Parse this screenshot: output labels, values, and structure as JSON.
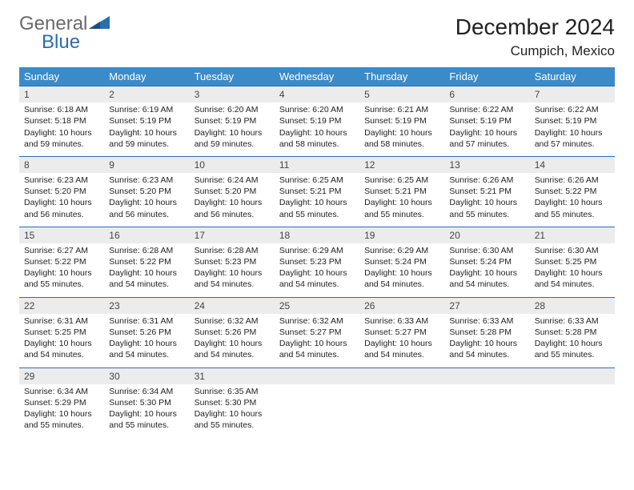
{
  "logo": {
    "word1": "General",
    "word2": "Blue"
  },
  "title": "December 2024",
  "location": "Cumpich, Mexico",
  "colors": {
    "header_bg": "#3b8bc8",
    "header_text": "#ffffff",
    "daynum_bg": "#ececec",
    "row_border": "#2a6db0",
    "logo_gray": "#6a6a6a",
    "logo_blue": "#2a6db0"
  },
  "weekdays": [
    "Sunday",
    "Monday",
    "Tuesday",
    "Wednesday",
    "Thursday",
    "Friday",
    "Saturday"
  ],
  "weeks": [
    [
      {
        "n": "1",
        "sr": "Sunrise: 6:18 AM",
        "ss": "Sunset: 5:18 PM",
        "dl": "Daylight: 10 hours and 59 minutes."
      },
      {
        "n": "2",
        "sr": "Sunrise: 6:19 AM",
        "ss": "Sunset: 5:19 PM",
        "dl": "Daylight: 10 hours and 59 minutes."
      },
      {
        "n": "3",
        "sr": "Sunrise: 6:20 AM",
        "ss": "Sunset: 5:19 PM",
        "dl": "Daylight: 10 hours and 59 minutes."
      },
      {
        "n": "4",
        "sr": "Sunrise: 6:20 AM",
        "ss": "Sunset: 5:19 PM",
        "dl": "Daylight: 10 hours and 58 minutes."
      },
      {
        "n": "5",
        "sr": "Sunrise: 6:21 AM",
        "ss": "Sunset: 5:19 PM",
        "dl": "Daylight: 10 hours and 58 minutes."
      },
      {
        "n": "6",
        "sr": "Sunrise: 6:22 AM",
        "ss": "Sunset: 5:19 PM",
        "dl": "Daylight: 10 hours and 57 minutes."
      },
      {
        "n": "7",
        "sr": "Sunrise: 6:22 AM",
        "ss": "Sunset: 5:19 PM",
        "dl": "Daylight: 10 hours and 57 minutes."
      }
    ],
    [
      {
        "n": "8",
        "sr": "Sunrise: 6:23 AM",
        "ss": "Sunset: 5:20 PM",
        "dl": "Daylight: 10 hours and 56 minutes."
      },
      {
        "n": "9",
        "sr": "Sunrise: 6:23 AM",
        "ss": "Sunset: 5:20 PM",
        "dl": "Daylight: 10 hours and 56 minutes."
      },
      {
        "n": "10",
        "sr": "Sunrise: 6:24 AM",
        "ss": "Sunset: 5:20 PM",
        "dl": "Daylight: 10 hours and 56 minutes."
      },
      {
        "n": "11",
        "sr": "Sunrise: 6:25 AM",
        "ss": "Sunset: 5:21 PM",
        "dl": "Daylight: 10 hours and 55 minutes."
      },
      {
        "n": "12",
        "sr": "Sunrise: 6:25 AM",
        "ss": "Sunset: 5:21 PM",
        "dl": "Daylight: 10 hours and 55 minutes."
      },
      {
        "n": "13",
        "sr": "Sunrise: 6:26 AM",
        "ss": "Sunset: 5:21 PM",
        "dl": "Daylight: 10 hours and 55 minutes."
      },
      {
        "n": "14",
        "sr": "Sunrise: 6:26 AM",
        "ss": "Sunset: 5:22 PM",
        "dl": "Daylight: 10 hours and 55 minutes."
      }
    ],
    [
      {
        "n": "15",
        "sr": "Sunrise: 6:27 AM",
        "ss": "Sunset: 5:22 PM",
        "dl": "Daylight: 10 hours and 55 minutes."
      },
      {
        "n": "16",
        "sr": "Sunrise: 6:28 AM",
        "ss": "Sunset: 5:22 PM",
        "dl": "Daylight: 10 hours and 54 minutes."
      },
      {
        "n": "17",
        "sr": "Sunrise: 6:28 AM",
        "ss": "Sunset: 5:23 PM",
        "dl": "Daylight: 10 hours and 54 minutes."
      },
      {
        "n": "18",
        "sr": "Sunrise: 6:29 AM",
        "ss": "Sunset: 5:23 PM",
        "dl": "Daylight: 10 hours and 54 minutes."
      },
      {
        "n": "19",
        "sr": "Sunrise: 6:29 AM",
        "ss": "Sunset: 5:24 PM",
        "dl": "Daylight: 10 hours and 54 minutes."
      },
      {
        "n": "20",
        "sr": "Sunrise: 6:30 AM",
        "ss": "Sunset: 5:24 PM",
        "dl": "Daylight: 10 hours and 54 minutes."
      },
      {
        "n": "21",
        "sr": "Sunrise: 6:30 AM",
        "ss": "Sunset: 5:25 PM",
        "dl": "Daylight: 10 hours and 54 minutes."
      }
    ],
    [
      {
        "n": "22",
        "sr": "Sunrise: 6:31 AM",
        "ss": "Sunset: 5:25 PM",
        "dl": "Daylight: 10 hours and 54 minutes."
      },
      {
        "n": "23",
        "sr": "Sunrise: 6:31 AM",
        "ss": "Sunset: 5:26 PM",
        "dl": "Daylight: 10 hours and 54 minutes."
      },
      {
        "n": "24",
        "sr": "Sunrise: 6:32 AM",
        "ss": "Sunset: 5:26 PM",
        "dl": "Daylight: 10 hours and 54 minutes."
      },
      {
        "n": "25",
        "sr": "Sunrise: 6:32 AM",
        "ss": "Sunset: 5:27 PM",
        "dl": "Daylight: 10 hours and 54 minutes."
      },
      {
        "n": "26",
        "sr": "Sunrise: 6:33 AM",
        "ss": "Sunset: 5:27 PM",
        "dl": "Daylight: 10 hours and 54 minutes."
      },
      {
        "n": "27",
        "sr": "Sunrise: 6:33 AM",
        "ss": "Sunset: 5:28 PM",
        "dl": "Daylight: 10 hours and 54 minutes."
      },
      {
        "n": "28",
        "sr": "Sunrise: 6:33 AM",
        "ss": "Sunset: 5:28 PM",
        "dl": "Daylight: 10 hours and 55 minutes."
      }
    ],
    [
      {
        "n": "29",
        "sr": "Sunrise: 6:34 AM",
        "ss": "Sunset: 5:29 PM",
        "dl": "Daylight: 10 hours and 55 minutes."
      },
      {
        "n": "30",
        "sr": "Sunrise: 6:34 AM",
        "ss": "Sunset: 5:30 PM",
        "dl": "Daylight: 10 hours and 55 minutes."
      },
      {
        "n": "31",
        "sr": "Sunrise: 6:35 AM",
        "ss": "Sunset: 5:30 PM",
        "dl": "Daylight: 10 hours and 55 minutes."
      },
      {
        "n": "",
        "sr": "",
        "ss": "",
        "dl": "",
        "empty": true
      },
      {
        "n": "",
        "sr": "",
        "ss": "",
        "dl": "",
        "empty": true
      },
      {
        "n": "",
        "sr": "",
        "ss": "",
        "dl": "",
        "empty": true
      },
      {
        "n": "",
        "sr": "",
        "ss": "",
        "dl": "",
        "empty": true
      }
    ]
  ]
}
